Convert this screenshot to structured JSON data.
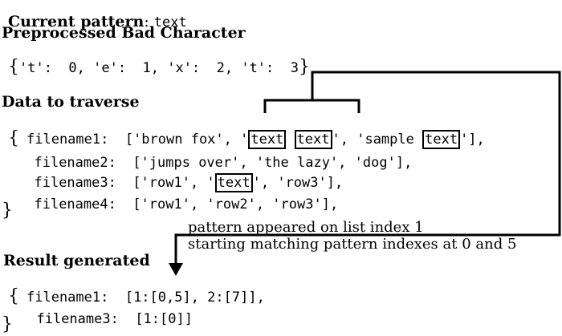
{
  "current_pattern": {
    "label": "Current pattern",
    "sep": ": ",
    "value": "text"
  },
  "bad_char": {
    "title": "Preprocessed Bad Character",
    "open": "{",
    "entries": "'t':  0, 'e':  1, 'x':  2, 't':  3",
    "close": "}"
  },
  "data_section": {
    "title": "Data to traverse",
    "open": "{",
    "close": "}",
    "rows": [
      {
        "key": "filename1:",
        "pre1": "  ['brown fox', '",
        "hit1": "text",
        "mid1": " ",
        "hit2": "text",
        "mid2": "', 'sample ",
        "hit3": "text",
        "post": "'],"
      },
      {
        "key": "filename2:",
        "text": "  ['jumps over', 'the lazy', 'dog'],"
      },
      {
        "key": "filename3:",
        "pre": "  ['row1', '",
        "hit": "text",
        "post": "', 'row3'],"
      },
      {
        "key": "filename4:",
        "text": "  ['row1', 'row2', 'row3'],"
      }
    ]
  },
  "annotation": {
    "line1": "pattern appeared on list index 1",
    "line2": "starting matching pattern indexes at 0 and 5"
  },
  "result": {
    "title": "Result generated",
    "open": "{",
    "close": "}",
    "rows": [
      {
        "key": "filename1:",
        "text": "  [1:[0,5], 2:[7]],"
      },
      {
        "key": "filename3:",
        "text": "  [1:[0]]"
      }
    ]
  }
}
